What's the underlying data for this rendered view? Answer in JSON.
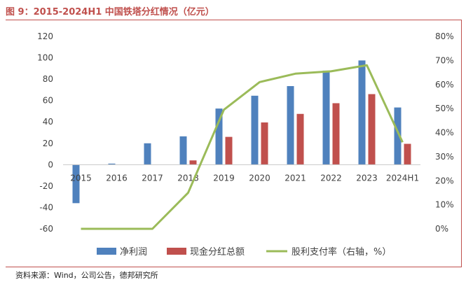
{
  "figure": {
    "title": "图 9：2015-2024H1 中国铁塔分红情况（亿元）",
    "source": "资料来源：Wind，公司公告，德邦研究所"
  },
  "chart_data": {
    "type": "bar",
    "categories": [
      "2015",
      "2016",
      "2017",
      "2018",
      "2019",
      "2020",
      "2021",
      "2022",
      "2023",
      "2024H1"
    ],
    "series": [
      {
        "name": "净利润",
        "type": "bar",
        "axis": "left",
        "color": "#4f81bd",
        "values": [
          -36,
          1,
          20,
          26.5,
          52.5,
          64.5,
          73.5,
          88,
          97.5,
          53.5
        ]
      },
      {
        "name": "现金分红总额",
        "type": "bar",
        "axis": "left",
        "color": "#c0504d",
        "values": [
          0,
          0,
          0,
          4,
          26,
          39.5,
          47.5,
          57.5,
          66,
          19.5
        ]
      },
      {
        "name": "股利支付率（右轴，%）",
        "type": "line",
        "axis": "right",
        "color": "#9bbb59",
        "values": [
          0,
          0,
          0,
          15,
          49.5,
          61,
          64.5,
          65.5,
          68,
          36
        ]
      }
    ],
    "y_left": {
      "min": -60,
      "max": 120,
      "ticks": [
        "-60",
        "-40",
        "-20",
        "0",
        "20",
        "40",
        "60",
        "80",
        "100",
        "120"
      ]
    },
    "y_right": {
      "min": 0,
      "max": 80,
      "ticks": [
        "0%",
        "10%",
        "20%",
        "30%",
        "40%",
        "50%",
        "60%",
        "70%",
        "80%"
      ]
    },
    "legend_position": "bottom",
    "grid": false
  }
}
